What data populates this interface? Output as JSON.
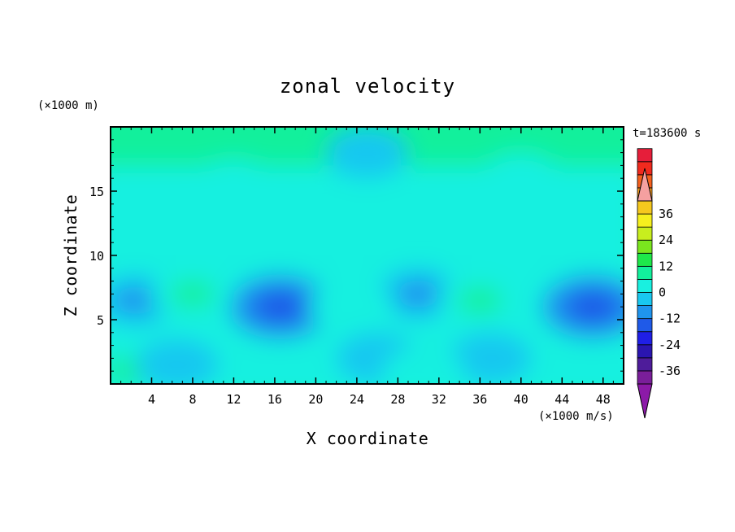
{
  "chart_data": {
    "type": "heatmap",
    "title": "zonal velocity",
    "xlabel": "X coordinate",
    "ylabel": "Z coordinate",
    "x_unit": "(×1000 m/s)",
    "y_unit": "(×1000 m)",
    "time_label": "t=183600 s",
    "xlim": [
      0,
      50
    ],
    "ylim": [
      0,
      20
    ],
    "x_ticks": [
      4,
      8,
      12,
      16,
      20,
      24,
      28,
      32,
      36,
      40,
      44,
      48
    ],
    "y_ticks": [
      5,
      10,
      15
    ],
    "colorbar": {
      "min": -42,
      "max": 42,
      "step": 6,
      "tick_labels": [
        "36",
        "24",
        "12",
        "0",
        "-12",
        "-24",
        "-36"
      ],
      "tick_values": [
        36,
        24,
        12,
        0,
        -12,
        -24,
        -36
      ],
      "colors": [
        "#7a1e9a",
        "#4e1c9a",
        "#2a15b0",
        "#1f1fe6",
        "#1f5ae8",
        "#1f94ee",
        "#19c8f0",
        "#19f0e0",
        "#12f09c",
        "#1ee84a",
        "#7ae61e",
        "#c8ee1e",
        "#f5f01e",
        "#f5c81e",
        "#f59a1e",
        "#f5601e",
        "#f02a1e",
        "#e61e3a"
      ],
      "over_color": "#f5a0a0",
      "under_color": "#8c1aa8"
    },
    "features": [
      {
        "x": 2.5,
        "z": 6.5,
        "u": -7
      },
      {
        "x": 16.5,
        "z": 6.0,
        "u": -14
      },
      {
        "x": 30.0,
        "z": 7.0,
        "u": -8
      },
      {
        "x": 47.0,
        "z": 6.0,
        "u": -14
      },
      {
        "x": 8.0,
        "z": 7.0,
        "u": 6
      },
      {
        "x": 36.0,
        "z": 6.5,
        "u": 6
      },
      {
        "x": 23.5,
        "z": 6.0,
        "u": 4
      },
      {
        "x": 17.5,
        "z": 1.2,
        "u": 5
      },
      {
        "x": 1.5,
        "z": 1.0,
        "u": 6
      },
      {
        "x": 6.5,
        "z": 1.5,
        "u": -4
      },
      {
        "x": 26.0,
        "z": 2.0,
        "u": -4
      },
      {
        "x": 37.0,
        "z": 2.0,
        "u": -4
      },
      {
        "x": 49.0,
        "z": 1.5,
        "u": 5
      },
      {
        "x": 30.5,
        "z": 0.8,
        "u": 4
      },
      {
        "x": 12.0,
        "z": 15.5,
        "u": 1
      },
      {
        "x": 40.0,
        "z": 16.0,
        "u": 1
      },
      {
        "x": 25.0,
        "z": 18.0,
        "u": -2
      }
    ]
  }
}
